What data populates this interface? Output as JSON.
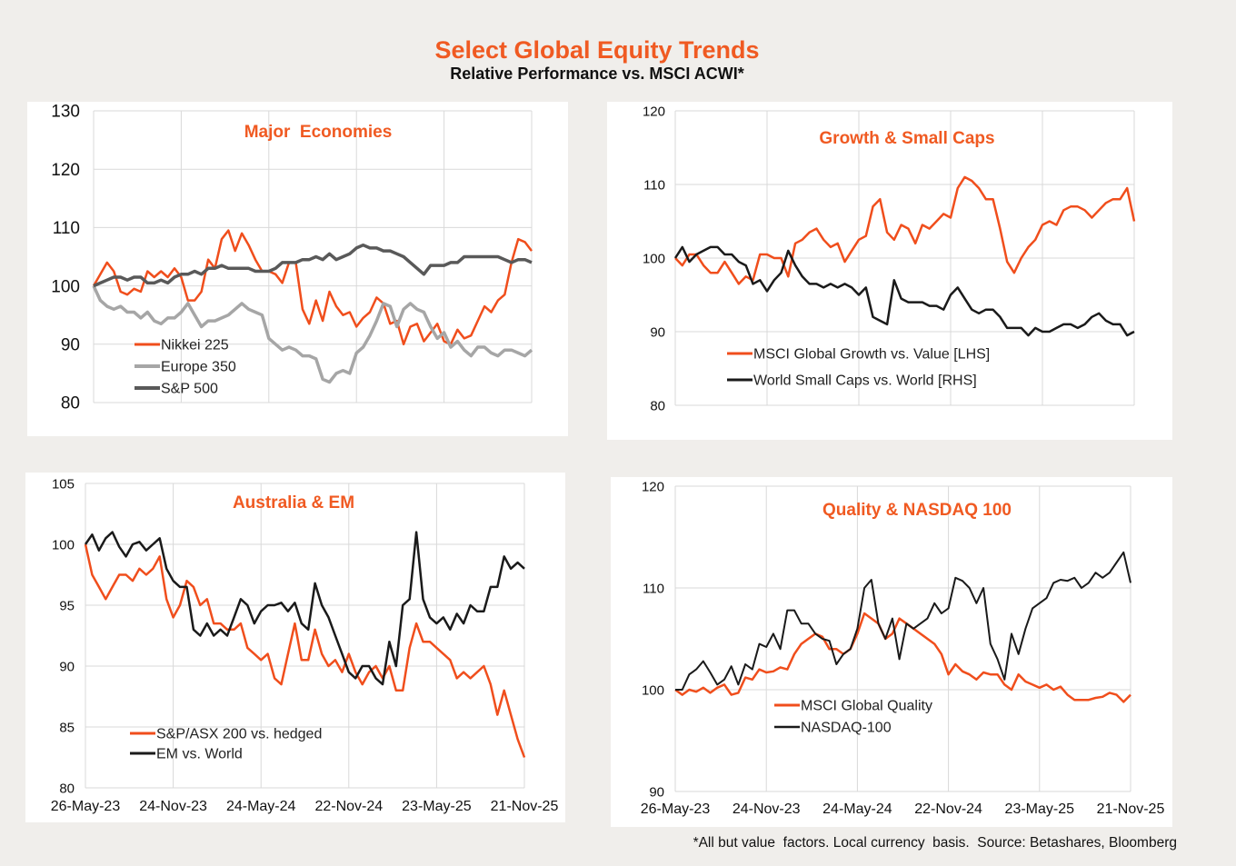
{
  "header": {
    "title": "Select Global Equity Trends",
    "subtitle": "Relative Performance vs. MSCI ACWI*"
  },
  "footnote": "*All but value  factors. Local currency  basis.  Source: Betashares, Bloomberg",
  "colors": {
    "orange": "#f04e1c",
    "black": "#1a1a1a",
    "grey": "#a6a6a6",
    "dark_grey": "#595959",
    "title": "#f05a22"
  },
  "chart_data": [
    {
      "type": "line",
      "title": "Major  Economies",
      "ylim": [
        80,
        130
      ],
      "yticks": [
        80,
        90,
        100,
        110,
        120,
        130
      ],
      "xlim": [
        "2023-05-26",
        "2025-11-21"
      ],
      "xtick_labels": [],
      "grid": true,
      "legend": "bottom-left",
      "x": [
        "2023-05-26",
        "2023-06-09",
        "2023-06-23",
        "2023-07-07",
        "2023-07-21",
        "2023-08-04",
        "2023-08-18",
        "2023-09-01",
        "2023-09-15",
        "2023-09-29",
        "2023-10-13",
        "2023-10-27",
        "2023-11-10",
        "2023-11-24",
        "2023-12-08",
        "2023-12-22",
        "2024-01-05",
        "2024-01-19",
        "2024-02-02",
        "2024-02-16",
        "2024-03-01",
        "2024-03-15",
        "2024-03-29",
        "2024-04-12",
        "2024-04-26",
        "2024-05-10",
        "2024-05-24",
        "2024-06-07",
        "2024-06-21",
        "2024-07-05",
        "2024-07-19",
        "2024-08-02",
        "2024-08-16",
        "2024-08-30",
        "2024-09-13",
        "2024-09-27",
        "2024-10-11",
        "2024-10-25",
        "2024-11-08",
        "2024-11-22",
        "2024-12-06",
        "2024-12-20",
        "2025-01-03",
        "2025-01-17",
        "2025-01-31",
        "2025-02-14",
        "2025-02-28",
        "2025-03-14",
        "2025-03-28",
        "2025-04-11",
        "2025-04-25",
        "2025-05-09",
        "2025-05-23",
        "2025-06-06",
        "2025-06-20",
        "2025-07-04",
        "2025-07-18",
        "2025-08-01",
        "2025-08-15",
        "2025-08-29",
        "2025-09-12",
        "2025-09-26",
        "2025-10-10",
        "2025-10-24",
        "2025-11-07",
        "2025-11-21"
      ],
      "series": [
        {
          "name": "Nikkei 225",
          "color": "#f04e1c",
          "values": [
            100,
            102,
            104,
            102.5,
            99,
            98.5,
            99.5,
            99,
            102.5,
            101.5,
            102.5,
            101.5,
            103,
            101.5,
            97.5,
            97.5,
            99,
            104.5,
            103,
            108,
            109.5,
            106,
            109,
            107,
            104.5,
            102.5,
            102.5,
            102,
            100.5,
            104,
            104,
            96,
            93.5,
            97.5,
            94,
            99,
            96.5,
            95,
            95.5,
            93,
            94.5,
            95.5,
            98,
            97,
            93.5,
            94,
            90,
            93,
            93.5,
            90.5,
            92,
            93.5,
            90.5,
            90,
            92.5,
            91,
            91.5,
            94,
            96.5,
            95.5,
            97.5,
            98.5,
            104,
            108,
            107.5,
            106
          ]
        },
        {
          "name": "Europe 350",
          "color": "#a6a6a6",
          "values": [
            100,
            97.5,
            96.5,
            96,
            96.5,
            95.5,
            95.5,
            94.5,
            95.5,
            94,
            93.5,
            94.5,
            94.5,
            95.5,
            97,
            95,
            93,
            94,
            94,
            94.5,
            95,
            96,
            97,
            96,
            95.5,
            95,
            91,
            90,
            89,
            89.5,
            89,
            88,
            88,
            87.5,
            84,
            83.5,
            85,
            85.5,
            85,
            88.5,
            89.5,
            91.5,
            94,
            97,
            96.5,
            93,
            96,
            97,
            96,
            95.5,
            93,
            91,
            92,
            89.5,
            90.5,
            89,
            88,
            89.5,
            89.5,
            88.5,
            88,
            89,
            89,
            88.5,
            88,
            89
          ]
        },
        {
          "name": "S&P 500",
          "color": "#595959",
          "values": [
            100,
            100.5,
            101,
            101.5,
            101.5,
            101,
            101.5,
            101.5,
            100.5,
            100.5,
            101,
            100.5,
            101.5,
            102,
            102,
            102.5,
            102,
            103,
            103,
            103.5,
            103,
            103,
            103,
            103,
            102.5,
            102.5,
            102.5,
            103,
            104,
            104,
            104,
            104.5,
            104.5,
            105,
            104.5,
            105.5,
            104.5,
            105,
            105.5,
            106.5,
            107,
            106.5,
            106.5,
            106,
            106,
            105.5,
            105,
            104,
            103,
            102,
            103.5,
            103.5,
            103.5,
            104,
            104,
            105,
            105,
            105,
            105,
            105,
            105,
            104.5,
            104,
            104.5,
            104.5,
            104
          ]
        }
      ]
    },
    {
      "type": "line",
      "title": "Growth & Small Caps",
      "ylim": [
        80,
        120
      ],
      "yticks": [
        80,
        90,
        100,
        110,
        120
      ],
      "xlim": [
        "2023-05-26",
        "2025-11-21"
      ],
      "xtick_labels": [],
      "grid": true,
      "legend": "bottom-left",
      "x": [
        "2023-05-26",
        "2023-06-09",
        "2023-06-23",
        "2023-07-07",
        "2023-07-21",
        "2023-08-04",
        "2023-08-18",
        "2023-09-01",
        "2023-09-15",
        "2023-09-29",
        "2023-10-13",
        "2023-10-27",
        "2023-11-10",
        "2023-11-24",
        "2023-12-08",
        "2023-12-22",
        "2024-01-05",
        "2024-01-19",
        "2024-02-02",
        "2024-02-16",
        "2024-03-01",
        "2024-03-15",
        "2024-03-29",
        "2024-04-12",
        "2024-04-26",
        "2024-05-10",
        "2024-05-24",
        "2024-06-07",
        "2024-06-21",
        "2024-07-05",
        "2024-07-19",
        "2024-08-02",
        "2024-08-16",
        "2024-08-30",
        "2024-09-13",
        "2024-09-27",
        "2024-10-11",
        "2024-10-25",
        "2024-11-08",
        "2024-11-22",
        "2024-12-06",
        "2024-12-20",
        "2025-01-03",
        "2025-01-17",
        "2025-01-31",
        "2025-02-14",
        "2025-02-28",
        "2025-03-14",
        "2025-03-28",
        "2025-04-11",
        "2025-04-25",
        "2025-05-09",
        "2025-05-23",
        "2025-06-06",
        "2025-06-20",
        "2025-07-04",
        "2025-07-18",
        "2025-08-01",
        "2025-08-15",
        "2025-08-29",
        "2025-09-12",
        "2025-09-26",
        "2025-10-10",
        "2025-10-24",
        "2025-11-07",
        "2025-11-21"
      ],
      "series": [
        {
          "name": "MSCI Global Growth vs. Value [LHS]",
          "color": "#f04e1c",
          "values": [
            100,
            99,
            100.5,
            100.5,
            99,
            98,
            98,
            99.5,
            98,
            96.5,
            97.5,
            97,
            100.5,
            100.5,
            100,
            100,
            97.5,
            102,
            102.5,
            103.5,
            104,
            102.5,
            101.5,
            102,
            99.5,
            101,
            102.5,
            103,
            107,
            108,
            103.5,
            102.5,
            104.5,
            104,
            102,
            104.5,
            104,
            105,
            106,
            105.5,
            109.5,
            111,
            110.5,
            109.5,
            108,
            108,
            104,
            99.5,
            98,
            100,
            101.5,
            102.5,
            104.5,
            105,
            104.5,
            106.5,
            107,
            107,
            106.5,
            105.5,
            106.5,
            107.5,
            108,
            108,
            109.5,
            105
          ]
        },
        {
          "name": "World Small Caps vs. World [RHS]",
          "color": "#1a1a1a",
          "values": [
            100,
            101.5,
            99.5,
            100.5,
            101,
            101.5,
            101.5,
            100.5,
            100.5,
            99.5,
            99,
            96.5,
            97,
            95.5,
            97,
            98,
            101,
            99,
            97.5,
            96.5,
            96.5,
            96,
            96.5,
            96,
            96.5,
            96,
            95,
            96,
            92,
            91.5,
            91,
            97,
            94.5,
            94,
            94,
            94,
            93.5,
            93.5,
            93,
            95,
            96,
            94.5,
            93,
            92.5,
            93,
            93,
            92,
            90.5,
            90.5,
            90.5,
            89.5,
            90.5,
            90,
            90,
            90.5,
            91,
            91,
            90.5,
            91,
            92,
            92.5,
            91.5,
            91,
            91,
            89.5,
            90
          ]
        }
      ]
    },
    {
      "type": "line",
      "title": "Australia & EM",
      "ylim": [
        80,
        105
      ],
      "yticks": [
        80,
        85,
        90,
        95,
        100,
        105
      ],
      "xlim": [
        "2023-05-26",
        "2025-11-21"
      ],
      "xtick_labels": [
        "26-May-23",
        "24-Nov-23",
        "24-May-24",
        "22-Nov-24",
        "23-May-25",
        "21-Nov-25"
      ],
      "grid": true,
      "legend": "bottom-left",
      "x": [
        "2023-05-26",
        "2023-06-09",
        "2023-06-23",
        "2023-07-07",
        "2023-07-21",
        "2023-08-04",
        "2023-08-18",
        "2023-09-01",
        "2023-09-15",
        "2023-09-29",
        "2023-10-13",
        "2023-10-27",
        "2023-11-10",
        "2023-11-24",
        "2023-12-08",
        "2023-12-22",
        "2024-01-05",
        "2024-01-19",
        "2024-02-02",
        "2024-02-16",
        "2024-03-01",
        "2024-03-15",
        "2024-03-29",
        "2024-04-12",
        "2024-04-26",
        "2024-05-10",
        "2024-05-24",
        "2024-06-07",
        "2024-06-21",
        "2024-07-05",
        "2024-07-19",
        "2024-08-02",
        "2024-08-16",
        "2024-08-30",
        "2024-09-13",
        "2024-09-27",
        "2024-10-11",
        "2024-10-25",
        "2024-11-08",
        "2024-11-22",
        "2024-12-06",
        "2024-12-20",
        "2025-01-03",
        "2025-01-17",
        "2025-01-31",
        "2025-02-14",
        "2025-02-28",
        "2025-03-14",
        "2025-03-28",
        "2025-04-11",
        "2025-04-25",
        "2025-05-09",
        "2025-05-23",
        "2025-06-06",
        "2025-06-20",
        "2025-07-04",
        "2025-07-18",
        "2025-08-01",
        "2025-08-15",
        "2025-08-29",
        "2025-09-12",
        "2025-09-26",
        "2025-10-10",
        "2025-10-24",
        "2025-11-07",
        "2025-11-21"
      ],
      "series": [
        {
          "name": "S&P/ASX 200 vs. hedged",
          "color": "#f04e1c",
          "values": [
            100,
            97.5,
            96.5,
            95.5,
            96.5,
            97.5,
            97.5,
            97,
            98,
            97.5,
            98,
            99,
            95.5,
            94,
            95,
            97,
            96.5,
            95,
            95.5,
            93.5,
            93.5,
            93,
            93,
            93.5,
            91.5,
            91,
            90.5,
            91,
            89,
            88.5,
            91,
            93.5,
            90.5,
            90.5,
            93,
            91,
            90,
            90.5,
            89.5,
            91,
            89.5,
            88.5,
            89.5,
            90,
            89,
            90,
            88,
            88,
            91.5,
            93.5,
            92,
            92,
            91.5,
            91,
            90.5,
            89,
            89.5,
            89,
            89.5,
            90,
            88.5,
            86,
            88,
            86,
            84,
            82.5
          ]
        },
        {
          "name": "EM vs. World",
          "color": "#1a1a1a",
          "values": [
            100,
            100.8,
            99.5,
            100.5,
            101,
            99.8,
            99,
            100,
            100.2,
            99.5,
            100,
            100.5,
            98,
            97,
            96.5,
            96.5,
            93,
            92.5,
            93.5,
            92.5,
            93,
            92.5,
            94,
            95.5,
            95,
            93.5,
            94.5,
            95,
            95,
            95.2,
            94.5,
            95.2,
            93.5,
            93,
            96.8,
            95,
            94,
            92.5,
            91,
            89.5,
            89,
            90,
            90,
            89,
            88.5,
            92,
            90,
            95,
            95.5,
            101,
            95.5,
            94,
            93.5,
            94,
            93,
            94.3,
            93.5,
            95,
            94.5,
            94.5,
            96.5,
            96.5,
            99,
            98,
            98.5,
            98
          ]
        }
      ]
    },
    {
      "type": "line",
      "title": "Quality & NASDAQ 100",
      "ylim": [
        90,
        120
      ],
      "yticks": [
        90,
        100,
        110,
        120
      ],
      "xlim": [
        "2023-05-26",
        "2025-11-21"
      ],
      "xtick_labels": [
        "26-May-23",
        "24-Nov-23",
        "24-May-24",
        "22-Nov-24",
        "23-May-25",
        "21-Nov-25"
      ],
      "grid": true,
      "legend": "bottom-left",
      "x": [
        "2023-05-26",
        "2023-06-09",
        "2023-06-23",
        "2023-07-07",
        "2023-07-21",
        "2023-08-04",
        "2023-08-18",
        "2023-09-01",
        "2023-09-15",
        "2023-09-29",
        "2023-10-13",
        "2023-10-27",
        "2023-11-10",
        "2023-11-24",
        "2023-12-08",
        "2023-12-22",
        "2024-01-05",
        "2024-01-19",
        "2024-02-02",
        "2024-02-16",
        "2024-03-01",
        "2024-03-15",
        "2024-03-29",
        "2024-04-12",
        "2024-04-26",
        "2024-05-10",
        "2024-05-24",
        "2024-06-07",
        "2024-06-21",
        "2024-07-05",
        "2024-07-19",
        "2024-08-02",
        "2024-08-16",
        "2024-08-30",
        "2024-09-13",
        "2024-09-27",
        "2024-10-11",
        "2024-10-25",
        "2024-11-08",
        "2024-11-22",
        "2024-12-06",
        "2024-12-20",
        "2025-01-03",
        "2025-01-17",
        "2025-01-31",
        "2025-02-14",
        "2025-02-28",
        "2025-03-14",
        "2025-03-28",
        "2025-04-11",
        "2025-04-25",
        "2025-05-09",
        "2025-05-23",
        "2025-06-06",
        "2025-06-20",
        "2025-07-04",
        "2025-07-18",
        "2025-08-01",
        "2025-08-15",
        "2025-08-29",
        "2025-09-12",
        "2025-09-26",
        "2025-10-10",
        "2025-10-24",
        "2025-11-07",
        "2025-11-21"
      ],
      "series": [
        {
          "name": "MSCI Global Quality",
          "color": "#f04e1c",
          "values": [
            100,
            99.5,
            100,
            99.8,
            100.2,
            99.7,
            100.2,
            100.5,
            99.5,
            99.7,
            101.2,
            101,
            102,
            101.7,
            101.8,
            102.2,
            102,
            103.5,
            104.5,
            105,
            105.5,
            105.2,
            104,
            104,
            103.5,
            104,
            105.5,
            107.5,
            107,
            106.5,
            105,
            105.5,
            107,
            106.5,
            106,
            105.5,
            105,
            104.5,
            103.5,
            101.5,
            102.5,
            101.8,
            101.5,
            101,
            101.7,
            101.5,
            101.5,
            100.5,
            100,
            101.5,
            100.8,
            100.5,
            100.2,
            100.5,
            100,
            100.3,
            99.5,
            99,
            99,
            99,
            99.2,
            99.3,
            99.7,
            99.5,
            98.8,
            99.5
          ]
        },
        {
          "name": "NASDAQ-100",
          "color": "#1a1a1a",
          "values": [
            100,
            100,
            101.5,
            102,
            102.8,
            101.7,
            100.5,
            101,
            102.3,
            100.5,
            102.5,
            102,
            104.5,
            104.2,
            105.5,
            104,
            107.8,
            107.8,
            106.5,
            106.5,
            105.5,
            105,
            104.8,
            102.5,
            103.5,
            104,
            106,
            110,
            110.8,
            106.5,
            105,
            107,
            103,
            106.5,
            106,
            106.5,
            107,
            108.5,
            107.5,
            108,
            111,
            110.7,
            110,
            108.5,
            110,
            104.5,
            103,
            101,
            105.5,
            103.5,
            106,
            108,
            108.5,
            109,
            110.5,
            110.8,
            110.7,
            111,
            110,
            110.5,
            111.5,
            111,
            111.5,
            112.5,
            113.5,
            110.5
          ]
        }
      ]
    }
  ]
}
